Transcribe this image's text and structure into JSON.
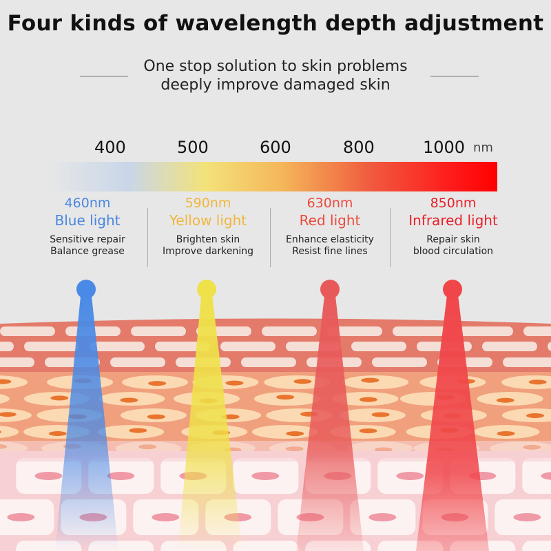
{
  "title": "Four kinds of wavelength depth adjustment",
  "subtitle": [
    "One stop solution to skin problems",
    "deeply improve damaged skin"
  ],
  "scale": {
    "ticks": [
      "400",
      "500",
      "600",
      "800",
      "1000"
    ],
    "unit": "nm"
  },
  "lights": [
    {
      "wavelength": "460nm",
      "name": "Blue light",
      "desc": [
        "Sensitive repair",
        "Balance grease"
      ],
      "color": "#4a86e0"
    },
    {
      "wavelength": "590nm",
      "name": "Yellow light",
      "desc": [
        "Brighten skin",
        "Improve darkening"
      ],
      "color": "#f0b63c"
    },
    {
      "wavelength": "630nm",
      "name": "Red light",
      "desc": [
        "Enhance elasticity",
        "Resist fine lines"
      ],
      "color": "#ec4a3c"
    },
    {
      "wavelength": "850nm",
      "name": "Infrared light",
      "desc": [
        "Repair skin",
        "blood circulation"
      ],
      "color": "#e8202a"
    }
  ],
  "beam_colors": [
    "#4a8ae6",
    "#efe14a",
    "#e85a5a",
    "#f0464a"
  ]
}
